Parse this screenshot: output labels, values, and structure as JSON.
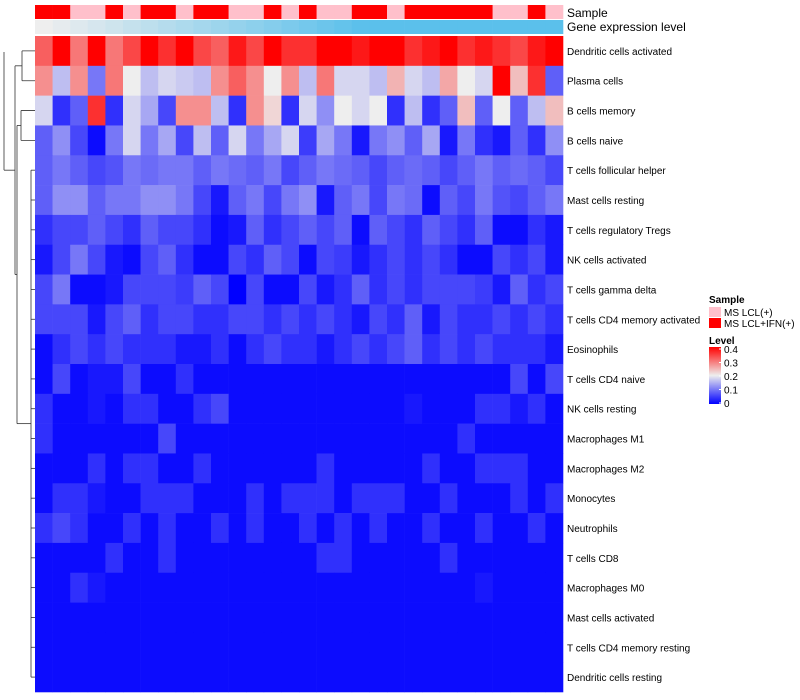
{
  "chart_data": {
    "type": "heatmap",
    "title": "",
    "annotation_labels": {
      "sample": "Sample",
      "expression": "Gene expression level"
    },
    "legend": {
      "sample_title": "Sample",
      "sample_entries": [
        {
          "label": "MS LCL(+)",
          "color": "#ffc0cb"
        },
        {
          "label": "MS LCL+IFN(+)",
          "color": "#ff0000"
        }
      ],
      "level_title": "Level",
      "level_ticks": [
        0.4,
        0.3,
        0.2,
        0.1,
        0
      ],
      "level_ticks_text": [
        "0.4",
        "0.3",
        "0.2",
        "0.1",
        "0"
      ],
      "scale_range": [
        0,
        0.4
      ],
      "scale_colors": {
        "low": "#0000ff",
        "mid": "#eeeeee",
        "high": "#ff0000"
      }
    },
    "sample_groups": [
      1,
      1,
      0,
      0,
      1,
      0,
      1,
      1,
      0,
      1,
      1,
      0,
      0,
      1,
      0,
      1,
      0,
      0,
      1,
      1,
      0,
      1,
      1,
      1,
      1,
      1,
      0,
      0,
      1,
      0
    ],
    "expression_bar_color": "#5bc0eb",
    "rows": [
      "Dendritic cells activated",
      "Plasma cells",
      "B cells memory",
      "B cells naive",
      "T cells follicular helper",
      "Mast cells resting",
      "T cells regulatory  Tregs",
      "NK cells activated",
      "T cells gamma delta",
      "T cells CD4 memory activated",
      "Eosinophils",
      "T cells CD4 naive",
      "NK cells resting",
      "Macrophages M1",
      "Macrophages M2",
      "Monocytes",
      "Neutrophils",
      "T cells CD8",
      "Macrophages M0",
      "Mast cells activated",
      "T cells CD4 memory resting",
      "Dendritic cells resting"
    ],
    "values": [
      [
        0.32,
        0.4,
        0.3,
        0.4,
        0.3,
        0.34,
        0.4,
        0.36,
        0.4,
        0.34,
        0.32,
        0.38,
        0.34,
        0.4,
        0.36,
        0.36,
        0.4,
        0.4,
        0.38,
        0.4,
        0.4,
        0.36,
        0.38,
        0.4,
        0.36,
        0.38,
        0.36,
        0.34,
        0.38,
        0.4
      ],
      [
        0.28,
        0.16,
        0.28,
        0.1,
        0.3,
        0.2,
        0.16,
        0.18,
        0.17,
        0.16,
        0.28,
        0.32,
        0.28,
        0.2,
        0.28,
        0.16,
        0.3,
        0.18,
        0.18,
        0.16,
        0.25,
        0.18,
        0.16,
        0.26,
        0.2,
        0.18,
        0.4,
        0.24,
        0.36,
        0.08
      ],
      [
        0.18,
        0.04,
        0.08,
        0.36,
        0.04,
        0.18,
        0.14,
        0.06,
        0.28,
        0.28,
        0.16,
        0.04,
        0.28,
        0.22,
        0.04,
        0.18,
        0.12,
        0.2,
        0.18,
        0.2,
        0.04,
        0.16,
        0.04,
        0.08,
        0.24,
        0.08,
        0.2,
        0.08,
        0.16,
        0.24
      ],
      [
        0.08,
        0.12,
        0.06,
        0.01,
        0.1,
        0.18,
        0.1,
        0.14,
        0.06,
        0.16,
        0.08,
        0.18,
        0.1,
        0.14,
        0.18,
        0.05,
        0.14,
        0.1,
        0.02,
        0.1,
        0.12,
        0.08,
        0.14,
        0.02,
        0.1,
        0.04,
        0.02,
        0.08,
        0.04,
        0.12
      ],
      [
        0.08,
        0.1,
        0.08,
        0.06,
        0.07,
        0.1,
        0.09,
        0.1,
        0.1,
        0.08,
        0.1,
        0.09,
        0.08,
        0.1,
        0.06,
        0.08,
        0.1,
        0.09,
        0.08,
        0.06,
        0.08,
        0.09,
        0.08,
        0.06,
        0.08,
        0.1,
        0.08,
        0.09,
        0.08,
        0.06
      ],
      [
        0.08,
        0.12,
        0.12,
        0.08,
        0.1,
        0.1,
        0.12,
        0.12,
        0.1,
        0.06,
        0.02,
        0.08,
        0.1,
        0.06,
        0.1,
        0.12,
        0.02,
        0.08,
        0.1,
        0.06,
        0.1,
        0.09,
        0.01,
        0.08,
        0.06,
        0.1,
        0.07,
        0.06,
        0.08,
        0.1
      ],
      [
        0.04,
        0.06,
        0.06,
        0.08,
        0.06,
        0.04,
        0.08,
        0.06,
        0.06,
        0.04,
        0.01,
        0.02,
        0.08,
        0.04,
        0.06,
        0.08,
        0.06,
        0.08,
        0.01,
        0.08,
        0.06,
        0.04,
        0.08,
        0.06,
        0.04,
        0.08,
        0.01,
        0.01,
        0.04,
        0.02
      ],
      [
        0.02,
        0.06,
        0.1,
        0.06,
        0.02,
        0.01,
        0.06,
        0.08,
        0.04,
        0.01,
        0.01,
        0.06,
        0.04,
        0.08,
        0.06,
        0.01,
        0.06,
        0.05,
        0.02,
        0.04,
        0.06,
        0.04,
        0.06,
        0.04,
        0.01,
        0.01,
        0.06,
        0.04,
        0.06,
        0.02
      ],
      [
        0.06,
        0.1,
        0.01,
        0.01,
        0.02,
        0.06,
        0.06,
        0.06,
        0.05,
        0.08,
        0.06,
        0.0,
        0.06,
        0.01,
        0.01,
        0.06,
        0.02,
        0.04,
        0.08,
        0.04,
        0.06,
        0.04,
        0.06,
        0.06,
        0.06,
        0.05,
        0.02,
        0.08,
        0.04,
        0.06
      ],
      [
        0.06,
        0.06,
        0.06,
        0.02,
        0.06,
        0.08,
        0.04,
        0.06,
        0.06,
        0.04,
        0.04,
        0.06,
        0.06,
        0.04,
        0.06,
        0.04,
        0.06,
        0.04,
        0.02,
        0.06,
        0.04,
        0.08,
        0.02,
        0.06,
        0.04,
        0.04,
        0.06,
        0.04,
        0.06,
        0.04
      ],
      [
        0.01,
        0.04,
        0.06,
        0.04,
        0.06,
        0.04,
        0.04,
        0.04,
        0.02,
        0.02,
        0.04,
        0.01,
        0.04,
        0.06,
        0.04,
        0.04,
        0.02,
        0.04,
        0.06,
        0.04,
        0.06,
        0.08,
        0.04,
        0.06,
        0.04,
        0.06,
        0.04,
        0.04,
        0.04,
        0.02
      ],
      [
        0.01,
        0.06,
        0.01,
        0.02,
        0.02,
        0.06,
        0.01,
        0.01,
        0.04,
        0.01,
        0.01,
        0.01,
        0.01,
        0.01,
        0.01,
        0.01,
        0.01,
        0.01,
        0.01,
        0.01,
        0.01,
        0.01,
        0.01,
        0.01,
        0.01,
        0.01,
        0.01,
        0.06,
        0.01,
        0.06
      ],
      [
        0.04,
        0.01,
        0.01,
        0.02,
        0.01,
        0.04,
        0.04,
        0.01,
        0.01,
        0.04,
        0.06,
        0.01,
        0.01,
        0.01,
        0.01,
        0.01,
        0.01,
        0.01,
        0.01,
        0.01,
        0.01,
        0.02,
        0.01,
        0.01,
        0.01,
        0.04,
        0.04,
        0.02,
        0.04,
        0.01
      ],
      [
        0.04,
        0.01,
        0.01,
        0.01,
        0.01,
        0.01,
        0.01,
        0.06,
        0.01,
        0.01,
        0.01,
        0.01,
        0.01,
        0.01,
        0.01,
        0.01,
        0.01,
        0.01,
        0.01,
        0.01,
        0.01,
        0.01,
        0.01,
        0.01,
        0.04,
        0.01,
        0.01,
        0.01,
        0.01,
        0.01
      ],
      [
        0.01,
        0.01,
        0.01,
        0.04,
        0.01,
        0.04,
        0.04,
        0.01,
        0.01,
        0.04,
        0.01,
        0.01,
        0.01,
        0.01,
        0.01,
        0.01,
        0.04,
        0.01,
        0.01,
        0.01,
        0.01,
        0.01,
        0.04,
        0.01,
        0.01,
        0.04,
        0.04,
        0.04,
        0.01,
        0.01
      ],
      [
        0.01,
        0.04,
        0.04,
        0.02,
        0.01,
        0.01,
        0.04,
        0.04,
        0.04,
        0.01,
        0.01,
        0.01,
        0.04,
        0.01,
        0.04,
        0.04,
        0.04,
        0.01,
        0.04,
        0.04,
        0.04,
        0.01,
        0.01,
        0.04,
        0.01,
        0.01,
        0.01,
        0.04,
        0.01,
        0.04
      ],
      [
        0.04,
        0.06,
        0.04,
        0.01,
        0.01,
        0.04,
        0.01,
        0.04,
        0.01,
        0.01,
        0.04,
        0.01,
        0.04,
        0.01,
        0.01,
        0.04,
        0.01,
        0.04,
        0.01,
        0.04,
        0.01,
        0.01,
        0.04,
        0.01,
        0.01,
        0.04,
        0.01,
        0.01,
        0.04,
        0.01
      ],
      [
        0.01,
        0.01,
        0.01,
        0.01,
        0.04,
        0.01,
        0.01,
        0.04,
        0.01,
        0.01,
        0.01,
        0.01,
        0.01,
        0.01,
        0.01,
        0.01,
        0.04,
        0.04,
        0.01,
        0.01,
        0.01,
        0.01,
        0.01,
        0.04,
        0.01,
        0.01,
        0.01,
        0.01,
        0.01,
        0.01
      ],
      [
        0.01,
        0.01,
        0.04,
        0.02,
        0.01,
        0.01,
        0.01,
        0.01,
        0.01,
        0.01,
        0.01,
        0.01,
        0.01,
        0.01,
        0.01,
        0.01,
        0.01,
        0.01,
        0.01,
        0.01,
        0.01,
        0.01,
        0.01,
        0.01,
        0.01,
        0.02,
        0.01,
        0.01,
        0.01,
        0.01
      ],
      [
        0.01,
        0.01,
        0.01,
        0.01,
        0.01,
        0.01,
        0.01,
        0.01,
        0.01,
        0.01,
        0.01,
        0.01,
        0.01,
        0.01,
        0.01,
        0.01,
        0.01,
        0.01,
        0.01,
        0.01,
        0.01,
        0.01,
        0.01,
        0.01,
        0.01,
        0.01,
        0.01,
        0.01,
        0.01,
        0.01
      ],
      [
        0.01,
        0.01,
        0.01,
        0.01,
        0.01,
        0.01,
        0.01,
        0.01,
        0.01,
        0.01,
        0.01,
        0.01,
        0.01,
        0.01,
        0.01,
        0.01,
        0.01,
        0.01,
        0.01,
        0.01,
        0.01,
        0.01,
        0.01,
        0.01,
        0.01,
        0.01,
        0.01,
        0.01,
        0.01,
        0.01
      ],
      [
        0.01,
        0.01,
        0.01,
        0.01,
        0.01,
        0.01,
        0.01,
        0.01,
        0.01,
        0.01,
        0.01,
        0.01,
        0.01,
        0.01,
        0.01,
        0.01,
        0.01,
        0.01,
        0.01,
        0.01,
        0.01,
        0.01,
        0.01,
        0.01,
        0.01,
        0.01,
        0.01,
        0.01,
        0.01,
        0.01
      ]
    ]
  }
}
